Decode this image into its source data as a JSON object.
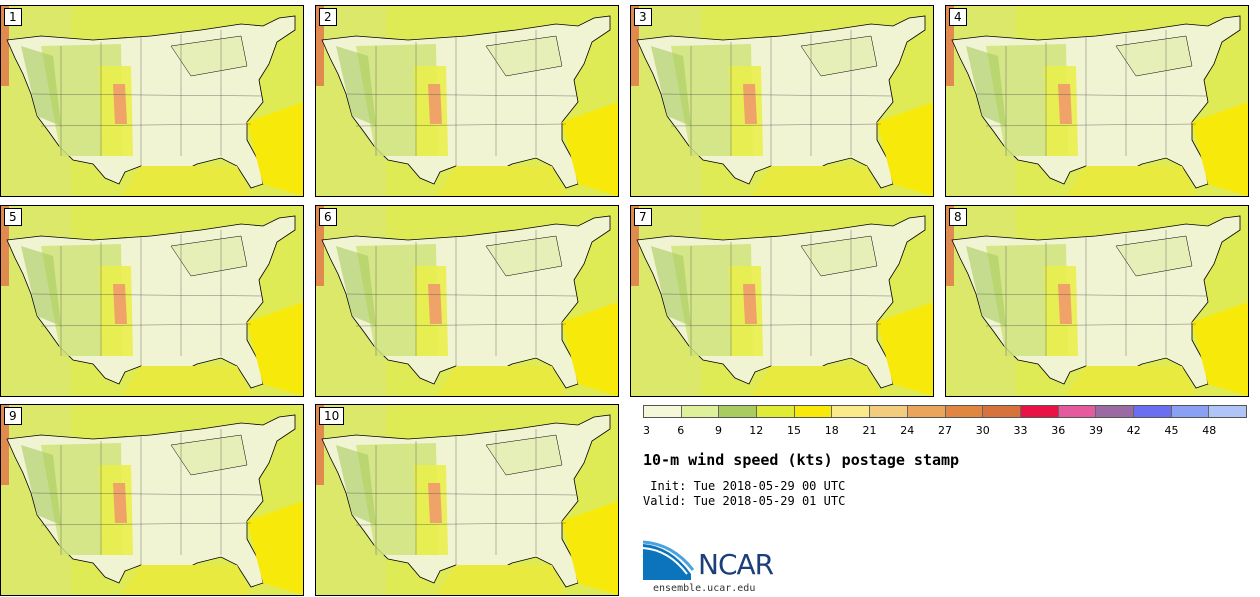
{
  "panels": [
    "1",
    "2",
    "3",
    "4",
    "5",
    "6",
    "7",
    "8",
    "9",
    "10"
  ],
  "colorbar": {
    "ticks": [
      "3",
      "6",
      "9",
      "12",
      "15",
      "18",
      "21",
      "24",
      "27",
      "30",
      "33",
      "36",
      "39",
      "42",
      "45",
      "48"
    ],
    "colors": [
      "#f4f7d8",
      "#dff09a",
      "#a8cc60",
      "#dfeb35",
      "#f7ea0a",
      "#faea8a",
      "#f2cd7e",
      "#eba55a",
      "#e08640",
      "#d8723d",
      "#ea1244",
      "#e55a9e",
      "#9b6aa3",
      "#6a6ef0",
      "#8aa0f5",
      "#b0c4f8"
    ]
  },
  "title": "10-m wind speed (kts) postage stamp",
  "init": " Init: Tue 2018-05-29 00 UTC",
  "valid": "Valid: Tue 2018-05-29 01 UTC",
  "logo": {
    "text": "NCAR",
    "url": "ensemble.ucar.edu"
  }
}
